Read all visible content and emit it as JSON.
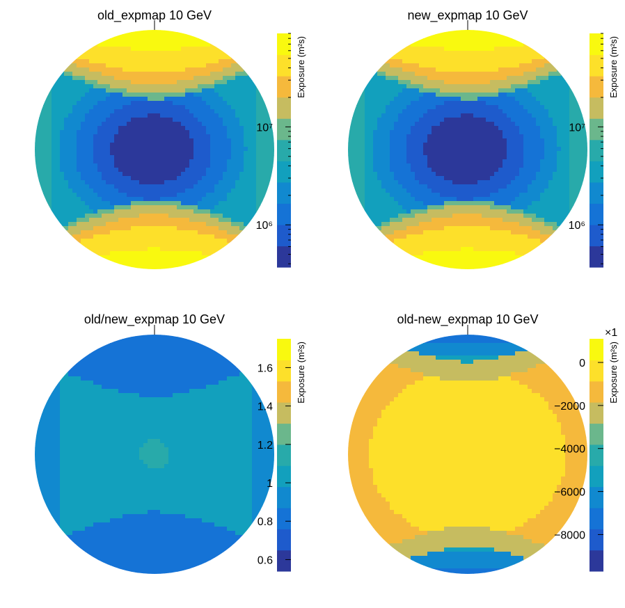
{
  "chart_data": [
    {
      "type": "heatmap",
      "projection": "polar-disk",
      "title": "old_expmap 10 GeV",
      "zlabel": "Exposure (m²s)",
      "zscale": "log",
      "zlim": [
        370000,
        90000000
      ],
      "ticks": [
        {
          "value": 1000000,
          "label": "10⁶"
        },
        {
          "value": 10000000,
          "label": "10⁷"
        }
      ],
      "pattern": "exposure",
      "colors": [
        "#2c389a",
        "#1e5bcc",
        "#1573d6",
        "#1189cf",
        "#12a0bd",
        "#28aaaa",
        "#6bb78c",
        "#c6bc60",
        "#f5b93c",
        "#fde02a",
        "#f9f90f"
      ]
    },
    {
      "type": "heatmap",
      "projection": "polar-disk",
      "title": "new_expmap 10 GeV",
      "zlabel": "Exposure (m²s)",
      "zscale": "log",
      "zlim": [
        370000,
        90000000
      ],
      "ticks": [
        {
          "value": 1000000,
          "label": "10⁶"
        },
        {
          "value": 10000000,
          "label": "10⁷"
        }
      ],
      "pattern": "exposure",
      "colors": [
        "#2c389a",
        "#1e5bcc",
        "#1573d6",
        "#1189cf",
        "#12a0bd",
        "#28aaaa",
        "#6bb78c",
        "#c6bc60",
        "#f5b93c",
        "#fde02a",
        "#f9f90f"
      ]
    },
    {
      "type": "heatmap",
      "projection": "polar-disk",
      "title": "old/new_expmap 10 GeV",
      "zlabel": "Exposure (m²s)",
      "zscale": "linear",
      "zlim": [
        0.54,
        1.75
      ],
      "ticks": [
        {
          "value": 0.6,
          "label": "0.6"
        },
        {
          "value": 0.8,
          "label": "0.8"
        },
        {
          "value": 1,
          "label": "1"
        },
        {
          "value": 1.2,
          "label": "1.2"
        },
        {
          "value": 1.4,
          "label": "1.4"
        },
        {
          "value": 1.6,
          "label": "1.6"
        }
      ],
      "pattern": "ratio",
      "colors": [
        "#2c389a",
        "#1e5bcc",
        "#1573d6",
        "#1189cf",
        "#12a0bd",
        "#28aaaa",
        "#6bb78c",
        "#c6bc60",
        "#f5b93c",
        "#fde02a",
        "#f9f90f"
      ]
    },
    {
      "type": "heatmap",
      "projection": "polar-disk",
      "title": "old-new_expmap 10 GeV",
      "zlabel": "Exposure (m²s)",
      "zscale": "linear",
      "zlim": [
        -9700,
        1100
      ],
      "multiplier": "×1",
      "ticks": [
        {
          "value": -8000,
          "label": "−8000"
        },
        {
          "value": -6000,
          "label": "−6000"
        },
        {
          "value": -4000,
          "label": "−4000"
        },
        {
          "value": -2000,
          "label": "−2000"
        },
        {
          "value": 0,
          "label": "0"
        }
      ],
      "pattern": "difference",
      "colors": [
        "#2c389a",
        "#1e5bcc",
        "#1573d6",
        "#1189cf",
        "#12a0bd",
        "#28aaaa",
        "#6bb78c",
        "#c6bc60",
        "#f5b93c",
        "#fde02a",
        "#f9f90f"
      ]
    }
  ]
}
